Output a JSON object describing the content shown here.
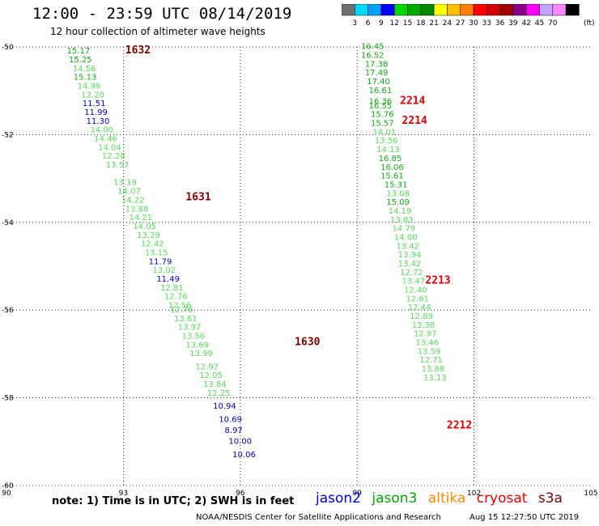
{
  "header": {
    "title": "12:00 - 23:59 UTC 08/14/2019",
    "subtitle": "12 hour collection of altimeter wave heights"
  },
  "colorbar": {
    "colors": [
      "#6e6e6e",
      "#00d8ff",
      "#00a0ff",
      "#0000ff",
      "#00d800",
      "#00aa00",
      "#008800",
      "#ffff00",
      "#ffbf00",
      "#ff8000",
      "#ff0000",
      "#d40000",
      "#a00000",
      "#880088",
      "#ff00ff",
      "#c8a0ff",
      "#ff88ff",
      "#000000"
    ],
    "labels": [
      "3",
      "6",
      "9",
      "12",
      "15",
      "18",
      "21",
      "24",
      "27",
      "30",
      "33",
      "36",
      "39",
      "42",
      "45",
      "70"
    ],
    "unit": "(ft)"
  },
  "chart_data": {
    "type": "scatter",
    "title": "12:00 - 23:59 UTC 08/14/2019",
    "subtitle": "12 hour collection of altimeter wave heights",
    "xlim": [
      90,
      105
    ],
    "ylim": [
      -60,
      -50
    ],
    "xticks": [
      "90",
      "93",
      "96",
      "99",
      "102",
      "105"
    ],
    "yticks": [
      "-50",
      "-52",
      "-54",
      "-56",
      "-58",
      "-60"
    ],
    "grid": true,
    "value_colors": {
      "#0000cc": [
        0,
        12
      ],
      "#11aa11": [
        15,
        18
      ],
      "#55dd55": [
        12,
        15
      ],
      "#008800": [
        18,
        21
      ]
    },
    "pass_labels": [
      {
        "label": "1632",
        "lon": 93.05,
        "lat": -50.15,
        "color": "#800000"
      },
      {
        "label": "1631",
        "lon": 94.6,
        "lat": -53.5,
        "color": "#800000"
      },
      {
        "label": "1630",
        "lon": 97.4,
        "lat": -56.8,
        "color": "#800000"
      },
      {
        "label": "2214",
        "lon": 100.1,
        "lat": -51.3,
        "color": "#dd0000"
      },
      {
        "label": "2214",
        "lon": 100.15,
        "lat": -51.75,
        "color": "#dd0000"
      },
      {
        "label": "2213",
        "lon": 100.75,
        "lat": -55.4,
        "color": "#dd0000"
      },
      {
        "label": "2212",
        "lon": 101.3,
        "lat": -58.7,
        "color": "#dd0000"
      }
    ],
    "series": [
      {
        "values": [
          {
            "lon": 91.55,
            "lat": -50.15,
            "v": "15.17"
          },
          {
            "lon": 91.6,
            "lat": -50.35,
            "v": "15.25"
          },
          {
            "lon": 91.7,
            "lat": -50.55,
            "v": "14.56"
          },
          {
            "lon": 91.72,
            "lat": -50.75,
            "v": "15.13"
          },
          {
            "lon": 91.82,
            "lat": -50.95,
            "v": "14.99"
          },
          {
            "lon": 91.92,
            "lat": -51.15,
            "v": "12.20"
          },
          {
            "lon": 91.95,
            "lat": -51.35,
            "v": "11.51"
          },
          {
            "lon": 92.0,
            "lat": -51.55,
            "v": "11.99"
          },
          {
            "lon": 92.05,
            "lat": -51.75,
            "v": "11.30"
          },
          {
            "lon": 92.15,
            "lat": -51.95,
            "v": "14.00"
          },
          {
            "lon": 92.25,
            "lat": -52.15,
            "v": "14.46"
          },
          {
            "lon": 92.35,
            "lat": -52.35,
            "v": "14.04"
          },
          {
            "lon": 92.45,
            "lat": -52.55,
            "v": "12.28"
          },
          {
            "lon": 92.55,
            "lat": -52.75,
            "v": "13.57"
          },
          {
            "lon": 92.75,
            "lat": -53.15,
            "v": "13.19"
          },
          {
            "lon": 92.85,
            "lat": -53.35,
            "v": "14.07"
          },
          {
            "lon": 92.95,
            "lat": -53.55,
            "v": "14.22"
          },
          {
            "lon": 93.05,
            "lat": -53.75,
            "v": "13.88"
          },
          {
            "lon": 93.15,
            "lat": -53.95,
            "v": "14.21"
          },
          {
            "lon": 93.25,
            "lat": -54.15,
            "v": "14.05"
          },
          {
            "lon": 93.35,
            "lat": -54.35,
            "v": "13.29"
          },
          {
            "lon": 93.45,
            "lat": -54.55,
            "v": "12.42"
          },
          {
            "lon": 93.55,
            "lat": -54.75,
            "v": "13.15"
          },
          {
            "lon": 93.65,
            "lat": -54.95,
            "v": "11.79"
          },
          {
            "lon": 93.75,
            "lat": -55.15,
            "v": "13.02"
          },
          {
            "lon": 93.85,
            "lat": -55.35,
            "v": "11.49"
          },
          {
            "lon": 93.95,
            "lat": -55.55,
            "v": "12.81"
          },
          {
            "lon": 94.05,
            "lat": -55.75,
            "v": "12.76"
          },
          {
            "lon": 94.15,
            "lat": -55.95,
            "v": "12.56"
          },
          {
            "lon": 94.2,
            "lat": -56.05,
            "v": "12.76"
          },
          {
            "lon": 94.3,
            "lat": -56.25,
            "v": "13.61"
          },
          {
            "lon": 94.4,
            "lat": -56.45,
            "v": "13.97"
          },
          {
            "lon": 94.5,
            "lat": -56.65,
            "v": "13.56"
          },
          {
            "lon": 94.6,
            "lat": -56.85,
            "v": "13.69"
          },
          {
            "lon": 94.7,
            "lat": -57.05,
            "v": "13.99"
          },
          {
            "lon": 94.85,
            "lat": -57.35,
            "v": "12.97"
          },
          {
            "lon": 94.95,
            "lat": -57.55,
            "v": "12.05"
          },
          {
            "lon": 95.05,
            "lat": -57.75,
            "v": "13.84"
          },
          {
            "lon": 95.15,
            "lat": -57.95,
            "v": "12.25"
          },
          {
            "lon": 95.3,
            "lat": -58.25,
            "v": "10.94"
          },
          {
            "lon": 95.45,
            "lat": -58.55,
            "v": "10.69"
          },
          {
            "lon": 95.6,
            "lat": -58.8,
            "v": "8.97"
          },
          {
            "lon": 95.7,
            "lat": -59.05,
            "v": "10.00"
          },
          {
            "lon": 95.8,
            "lat": -59.35,
            "v": "10.06"
          }
        ]
      },
      {
        "values": [
          {
            "lon": 99.1,
            "lat": -50.05,
            "v": "16.45"
          },
          {
            "lon": 99.1,
            "lat": -50.25,
            "v": "16.52"
          },
          {
            "lon": 99.2,
            "lat": -50.45,
            "v": "17.38"
          },
          {
            "lon": 99.2,
            "lat": -50.65,
            "v": "17.49"
          },
          {
            "lon": 99.25,
            "lat": -50.85,
            "v": "17.40"
          },
          {
            "lon": 99.3,
            "lat": -51.05,
            "v": "16.61"
          },
          {
            "lon": 99.3,
            "lat": -51.3,
            "v": "16.36"
          },
          {
            "lon": 99.3,
            "lat": -51.4,
            "v": "16.55"
          },
          {
            "lon": 99.35,
            "lat": -51.6,
            "v": "15.76"
          },
          {
            "lon": 99.35,
            "lat": -51.8,
            "v": "15.57"
          },
          {
            "lon": 99.4,
            "lat": -52.0,
            "v": "14.01"
          },
          {
            "lon": 99.45,
            "lat": -52.2,
            "v": "13.56"
          },
          {
            "lon": 99.5,
            "lat": -52.4,
            "v": "14.13"
          },
          {
            "lon": 99.55,
            "lat": -52.6,
            "v": "16.85"
          },
          {
            "lon": 99.6,
            "lat": -52.8,
            "v": "16.06"
          },
          {
            "lon": 99.6,
            "lat": -53.0,
            "v": "15.61"
          },
          {
            "lon": 99.7,
            "lat": -53.2,
            "v": "15.31"
          },
          {
            "lon": 99.75,
            "lat": -53.4,
            "v": "13.08"
          },
          {
            "lon": 99.75,
            "lat": -53.6,
            "v": "15.09"
          },
          {
            "lon": 99.8,
            "lat": -53.8,
            "v": "14.19"
          },
          {
            "lon": 99.85,
            "lat": -54.0,
            "v": "13.83"
          },
          {
            "lon": 99.9,
            "lat": -54.2,
            "v": "14.79"
          },
          {
            "lon": 99.95,
            "lat": -54.4,
            "v": "14.00"
          },
          {
            "lon": 100.0,
            "lat": -54.6,
            "v": "13.42"
          },
          {
            "lon": 100.05,
            "lat": -54.8,
            "v": "13.94"
          },
          {
            "lon": 100.05,
            "lat": -55.0,
            "v": "13.42"
          },
          {
            "lon": 100.1,
            "lat": -55.2,
            "v": "12.72"
          },
          {
            "lon": 100.15,
            "lat": -55.4,
            "v": "13.47"
          },
          {
            "lon": 100.2,
            "lat": -55.6,
            "v": "12.40"
          },
          {
            "lon": 100.25,
            "lat": -55.8,
            "v": "12.61"
          },
          {
            "lon": 100.3,
            "lat": -56.0,
            "v": "12.44"
          },
          {
            "lon": 100.35,
            "lat": -56.2,
            "v": "12.89"
          },
          {
            "lon": 100.4,
            "lat": -56.4,
            "v": "13.38"
          },
          {
            "lon": 100.45,
            "lat": -56.6,
            "v": "12.97"
          },
          {
            "lon": 100.5,
            "lat": -56.8,
            "v": "13.46"
          },
          {
            "lon": 100.55,
            "lat": -57.0,
            "v": "13.59"
          },
          {
            "lon": 100.6,
            "lat": -57.2,
            "v": "12.71"
          },
          {
            "lon": 100.65,
            "lat": -57.4,
            "v": "13.88"
          },
          {
            "lon": 100.7,
            "lat": -57.6,
            "v": "13.13"
          }
        ]
      }
    ]
  },
  "footer": {
    "note": "note: 1) Time is in UTC; 2) SWH is in feet",
    "credit": "NOAA/NESDIS Center for Satellite Applications and Research",
    "timestamp": "Aug 15 12:27:50 UTC 2019",
    "legend": [
      {
        "name": "jason2",
        "color": "#0000ee"
      },
      {
        "name": "jason3",
        "color": "#00aa00"
      },
      {
        "name": "altika",
        "color": "#ff8800"
      },
      {
        "name": "cryosat",
        "color": "#ee0000"
      },
      {
        "name": "s3a",
        "color": "#880000"
      }
    ]
  }
}
